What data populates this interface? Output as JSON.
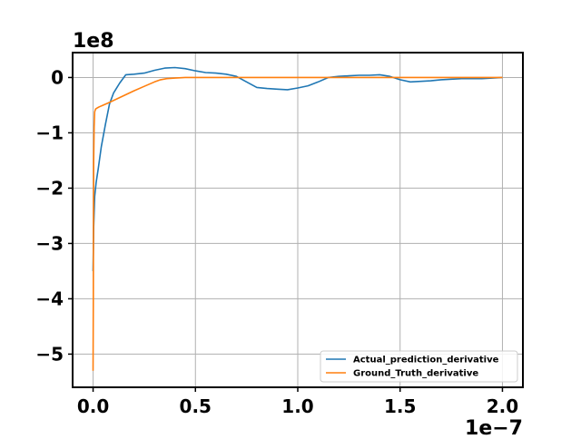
{
  "chart_data": {
    "type": "line",
    "title": "",
    "xlabel": "",
    "ylabel": "",
    "x_offset_label": "1e−7",
    "y_offset_label": "1e8",
    "xlim": [
      -0.1,
      2.1
    ],
    "ylim": [
      -5.6,
      0.45
    ],
    "x_ticks": [
      0.0,
      0.5,
      1.0,
      1.5,
      2.0
    ],
    "x_tick_labels": [
      "0.0",
      "0.5",
      "1.0",
      "1.5",
      "2.0"
    ],
    "y_ticks": [
      0,
      -1,
      -2,
      -3,
      -4,
      -5
    ],
    "y_tick_labels": [
      "0",
      "−1",
      "−2",
      "−3",
      "−4",
      "−5"
    ],
    "grid": true,
    "legend_position": "lower-right",
    "series": [
      {
        "name": "Actual_prediction_derivative",
        "color": "#1f77b4",
        "x": [
          0.0,
          0.003,
          0.008,
          0.015,
          0.025,
          0.04,
          0.06,
          0.08,
          0.1,
          0.13,
          0.16,
          0.2,
          0.25,
          0.3,
          0.35,
          0.4,
          0.45,
          0.5,
          0.55,
          0.6,
          0.65,
          0.7,
          0.75,
          0.8,
          0.85,
          0.9,
          0.95,
          1.0,
          1.05,
          1.1,
          1.15,
          1.2,
          1.25,
          1.3,
          1.35,
          1.4,
          1.45,
          1.5,
          1.55,
          1.6,
          1.65,
          1.7,
          1.75,
          1.8,
          1.85,
          1.9,
          1.95,
          2.0
        ],
        "y": [
          -3.5,
          -2.7,
          -2.15,
          -1.9,
          -1.65,
          -1.25,
          -0.85,
          -0.48,
          -0.28,
          -0.1,
          0.05,
          0.06,
          0.08,
          0.13,
          0.17,
          0.18,
          0.16,
          0.12,
          0.09,
          0.08,
          0.06,
          0.02,
          -0.08,
          -0.18,
          -0.2,
          -0.21,
          -0.22,
          -0.19,
          -0.15,
          -0.08,
          0.0,
          0.02,
          0.03,
          0.04,
          0.04,
          0.05,
          0.02,
          -0.04,
          -0.08,
          -0.07,
          -0.06,
          -0.04,
          -0.03,
          -0.02,
          -0.02,
          -0.02,
          -0.01,
          0.0
        ]
      },
      {
        "name": "Ground_Truth_derivative",
        "color": "#ff7f0e",
        "x": [
          0.0,
          0.001,
          0.002,
          0.003,
          0.005,
          0.008,
          0.012,
          0.02,
          0.03,
          0.05,
          0.08,
          0.12,
          0.16,
          0.2,
          0.25,
          0.3,
          0.33,
          0.36,
          0.4,
          0.45,
          0.5,
          0.7,
          1.0,
          1.5,
          2.0
        ],
        "y": [
          -5.3,
          -4.0,
          -2.5,
          -1.5,
          -0.9,
          -0.62,
          -0.57,
          -0.55,
          -0.53,
          -0.5,
          -0.45,
          -0.38,
          -0.31,
          -0.24,
          -0.16,
          -0.08,
          -0.04,
          -0.02,
          -0.01,
          0.0,
          0.0,
          0.0,
          0.0,
          0.0,
          0.0
        ]
      }
    ]
  }
}
